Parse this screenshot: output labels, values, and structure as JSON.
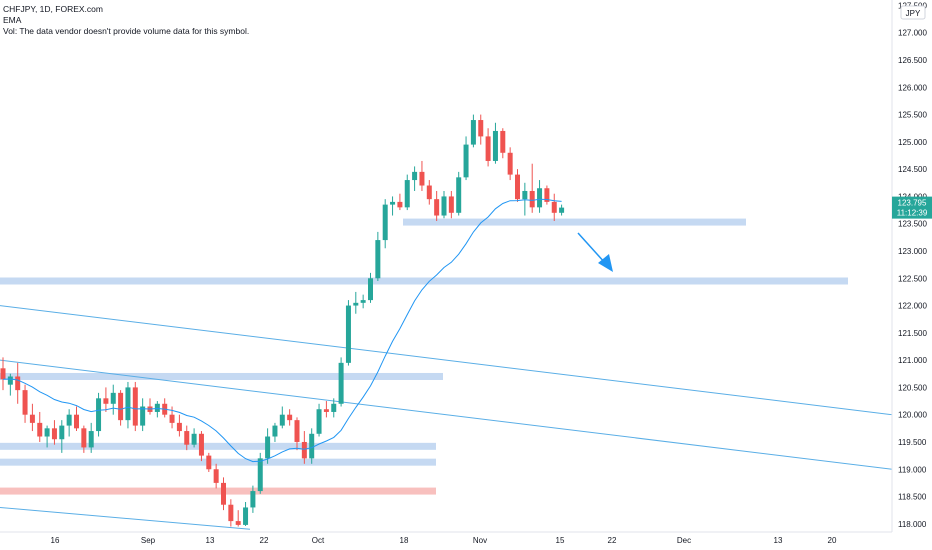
{
  "legend": {
    "symbol": "CHFJPY, 1D, FOREX.com",
    "ema_label": "EMA",
    "volume_note": "Vol: The data vendor doesn't provide volume data for this symbol."
  },
  "price_scale": {
    "currency": "JPY",
    "current_price": "123.795",
    "countdown": "11:12:39",
    "ticks": [
      "127.500",
      "127.000",
      "126.500",
      "126.000",
      "125.500",
      "125.000",
      "124.500",
      "124.000",
      "123.500",
      "123.000",
      "122.500",
      "122.000",
      "121.500",
      "121.000",
      "120.500",
      "120.000",
      "119.500",
      "119.000",
      "118.500",
      "118.000"
    ]
  },
  "time_scale": {
    "ticks": [
      "16",
      "Sep",
      "13",
      "22",
      "Oct",
      "18",
      "Nov",
      "15",
      "22",
      "Dec",
      "13",
      "20"
    ]
  },
  "colors": {
    "up": "#26a69a",
    "down": "#ef5350",
    "ema": "#2196f3",
    "zone": "#bbd2f0",
    "zone_red": "#f7b5b3",
    "trend": "#5aaee6",
    "arrow": "#2196f3",
    "price_tag": "#26a69a"
  },
  "chart_data": {
    "type": "candlestick",
    "y_axis": {
      "ylim": [
        117.85,
        127.6
      ],
      "unit": "JPY",
      "side": "right"
    },
    "candles": [
      {
        "o": 120.85,
        "h": 121.05,
        "l": 120.45,
        "c": 120.65
      },
      {
        "o": 120.55,
        "h": 120.75,
        "l": 120.35,
        "c": 120.7
      },
      {
        "o": 120.7,
        "h": 120.95,
        "l": 120.2,
        "c": 120.45
      },
      {
        "o": 120.45,
        "h": 120.55,
        "l": 119.85,
        "c": 120.0
      },
      {
        "o": 120.0,
        "h": 120.2,
        "l": 119.7,
        "c": 119.85
      },
      {
        "o": 119.85,
        "h": 120.05,
        "l": 119.5,
        "c": 119.6
      },
      {
        "o": 119.6,
        "h": 119.8,
        "l": 119.4,
        "c": 119.75
      },
      {
        "o": 119.75,
        "h": 119.9,
        "l": 119.45,
        "c": 119.55
      },
      {
        "o": 119.55,
        "h": 119.9,
        "l": 119.3,
        "c": 119.8
      },
      {
        "o": 119.8,
        "h": 120.1,
        "l": 119.6,
        "c": 120.0
      },
      {
        "o": 120.0,
        "h": 120.15,
        "l": 119.7,
        "c": 119.75
      },
      {
        "o": 119.75,
        "h": 119.8,
        "l": 119.3,
        "c": 119.4
      },
      {
        "o": 119.4,
        "h": 119.85,
        "l": 119.3,
        "c": 119.7
      },
      {
        "o": 119.7,
        "h": 120.4,
        "l": 119.6,
        "c": 120.3
      },
      {
        "o": 120.3,
        "h": 120.5,
        "l": 120.05,
        "c": 120.2
      },
      {
        "o": 120.2,
        "h": 120.55,
        "l": 120.0,
        "c": 120.4
      },
      {
        "o": 120.4,
        "h": 120.45,
        "l": 119.8,
        "c": 119.9
      },
      {
        "o": 119.9,
        "h": 120.6,
        "l": 119.75,
        "c": 120.5
      },
      {
        "o": 120.5,
        "h": 120.6,
        "l": 119.7,
        "c": 119.8
      },
      {
        "o": 119.8,
        "h": 120.3,
        "l": 119.7,
        "c": 120.15
      },
      {
        "o": 120.15,
        "h": 120.3,
        "l": 120.0,
        "c": 120.05
      },
      {
        "o": 120.05,
        "h": 120.25,
        "l": 119.95,
        "c": 120.2
      },
      {
        "o": 120.2,
        "h": 120.3,
        "l": 119.95,
        "c": 120.0
      },
      {
        "o": 120.0,
        "h": 120.15,
        "l": 119.75,
        "c": 119.85
      },
      {
        "o": 119.85,
        "h": 120.0,
        "l": 119.6,
        "c": 119.7
      },
      {
        "o": 119.7,
        "h": 119.8,
        "l": 119.35,
        "c": 119.45
      },
      {
        "o": 119.45,
        "h": 119.75,
        "l": 119.4,
        "c": 119.65
      },
      {
        "o": 119.65,
        "h": 119.7,
        "l": 119.15,
        "c": 119.25
      },
      {
        "o": 119.25,
        "h": 119.3,
        "l": 118.95,
        "c": 119.0
      },
      {
        "o": 119.0,
        "h": 119.1,
        "l": 118.65,
        "c": 118.75
      },
      {
        "o": 118.75,
        "h": 118.85,
        "l": 118.25,
        "c": 118.35
      },
      {
        "o": 118.35,
        "h": 118.45,
        "l": 117.95,
        "c": 118.05
      },
      {
        "o": 118.05,
        "h": 118.25,
        "l": 117.95,
        "c": 117.98
      },
      {
        "o": 117.98,
        "h": 118.4,
        "l": 117.96,
        "c": 118.3
      },
      {
        "o": 118.3,
        "h": 118.7,
        "l": 118.2,
        "c": 118.6
      },
      {
        "o": 118.6,
        "h": 119.3,
        "l": 118.55,
        "c": 119.2
      },
      {
        "o": 119.2,
        "h": 119.75,
        "l": 119.1,
        "c": 119.6
      },
      {
        "o": 119.6,
        "h": 119.85,
        "l": 119.5,
        "c": 119.8
      },
      {
        "o": 119.8,
        "h": 120.15,
        "l": 119.75,
        "c": 120.0
      },
      {
        "o": 120.0,
        "h": 120.1,
        "l": 119.8,
        "c": 119.9
      },
      {
        "o": 119.9,
        "h": 119.95,
        "l": 119.35,
        "c": 119.5
      },
      {
        "o": 119.5,
        "h": 119.7,
        "l": 119.1,
        "c": 119.2
      },
      {
        "o": 119.2,
        "h": 119.75,
        "l": 119.1,
        "c": 119.65
      },
      {
        "o": 119.65,
        "h": 120.2,
        "l": 119.6,
        "c": 120.1
      },
      {
        "o": 120.1,
        "h": 120.25,
        "l": 119.95,
        "c": 120.05
      },
      {
        "o": 120.05,
        "h": 120.3,
        "l": 119.95,
        "c": 120.2
      },
      {
        "o": 120.2,
        "h": 121.05,
        "l": 120.15,
        "c": 120.95
      },
      {
        "o": 120.95,
        "h": 122.1,
        "l": 120.9,
        "c": 122.0
      },
      {
        "o": 122.0,
        "h": 122.25,
        "l": 121.85,
        "c": 122.05
      },
      {
        "o": 122.05,
        "h": 122.2,
        "l": 121.95,
        "c": 122.1
      },
      {
        "o": 122.1,
        "h": 122.6,
        "l": 122.05,
        "c": 122.5
      },
      {
        "o": 122.5,
        "h": 123.35,
        "l": 122.45,
        "c": 123.2
      },
      {
        "o": 123.2,
        "h": 123.95,
        "l": 123.05,
        "c": 123.85
      },
      {
        "o": 123.85,
        "h": 124.0,
        "l": 123.65,
        "c": 123.9
      },
      {
        "o": 123.9,
        "h": 124.05,
        "l": 123.75,
        "c": 123.8
      },
      {
        "o": 123.8,
        "h": 124.4,
        "l": 123.75,
        "c": 124.3
      },
      {
        "o": 124.3,
        "h": 124.55,
        "l": 124.1,
        "c": 124.45
      },
      {
        "o": 124.45,
        "h": 124.65,
        "l": 124.1,
        "c": 124.2
      },
      {
        "o": 124.2,
        "h": 124.3,
        "l": 123.85,
        "c": 123.95
      },
      {
        "o": 123.95,
        "h": 124.1,
        "l": 123.55,
        "c": 123.65
      },
      {
        "o": 123.65,
        "h": 124.1,
        "l": 123.6,
        "c": 124.0
      },
      {
        "o": 124.0,
        "h": 124.1,
        "l": 123.6,
        "c": 123.7
      },
      {
        "o": 123.7,
        "h": 124.45,
        "l": 123.65,
        "c": 124.35
      },
      {
        "o": 124.35,
        "h": 125.1,
        "l": 124.3,
        "c": 124.95
      },
      {
        "o": 124.95,
        "h": 125.5,
        "l": 124.9,
        "c": 125.4
      },
      {
        "o": 125.4,
        "h": 125.5,
        "l": 124.95,
        "c": 125.1
      },
      {
        "o": 125.1,
        "h": 125.25,
        "l": 124.55,
        "c": 124.65
      },
      {
        "o": 124.65,
        "h": 125.35,
        "l": 124.6,
        "c": 125.2
      },
      {
        "o": 125.2,
        "h": 125.25,
        "l": 124.7,
        "c": 124.8
      },
      {
        "o": 124.8,
        "h": 124.9,
        "l": 124.3,
        "c": 124.4
      },
      {
        "o": 124.4,
        "h": 124.5,
        "l": 123.9,
        "c": 123.95
      },
      {
        "o": 123.95,
        "h": 124.25,
        "l": 123.65,
        "c": 124.1
      },
      {
        "o": 124.1,
        "h": 124.6,
        "l": 123.7,
        "c": 123.8
      },
      {
        "o": 123.8,
        "h": 124.3,
        "l": 123.7,
        "c": 124.15
      },
      {
        "o": 124.15,
        "h": 124.2,
        "l": 123.85,
        "c": 123.9
      },
      {
        "o": 123.9,
        "h": 124.05,
        "l": 123.55,
        "c": 123.7
      },
      {
        "o": 123.7,
        "h": 123.85,
        "l": 123.65,
        "c": 123.795
      }
    ],
    "ema_series": "EMA",
    "horizontal_zones": [
      {
        "price": 123.53,
        "color": "zone"
      },
      {
        "price": 122.45,
        "color": "zone"
      },
      {
        "price": 120.7,
        "color": "zone"
      },
      {
        "price": 119.42,
        "color": "zone"
      },
      {
        "price": 119.13,
        "color": "zone"
      },
      {
        "price": 118.6,
        "color": "zone_red"
      }
    ],
    "trend_lines": [
      {
        "p1": 122.0,
        "p2": 120.0,
        "color": "trend"
      },
      {
        "p1": 121.0,
        "p2": 119.0,
        "color": "trend"
      },
      {
        "p1": 118.3,
        "p2": 117.9,
        "color": "trend"
      }
    ],
    "x_ticks": [
      "16",
      "Sep",
      "13",
      "22",
      "Oct",
      "18",
      "Nov",
      "15",
      "22",
      "Dec",
      "13",
      "20"
    ]
  }
}
